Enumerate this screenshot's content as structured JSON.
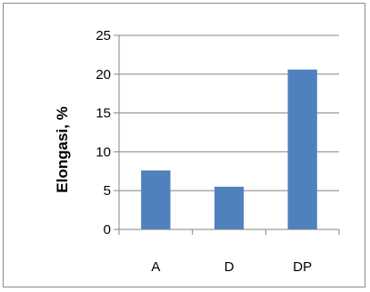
{
  "chart_data": {
    "type": "bar",
    "categories": [
      "A",
      "D",
      "DP"
    ],
    "series": [
      {
        "values": [
          7.6,
          5.5,
          20.6
        ]
      }
    ],
    "title": "",
    "xlabel": "",
    "ylabel": "Elongasi, %",
    "ylim": [
      0,
      25
    ],
    "yticks": [
      "0",
      "5",
      "10",
      "15",
      "20",
      "25"
    ],
    "grid": true,
    "legend": "none",
    "bar_color": "#4f81bd",
    "grid_color": "#868686"
  }
}
